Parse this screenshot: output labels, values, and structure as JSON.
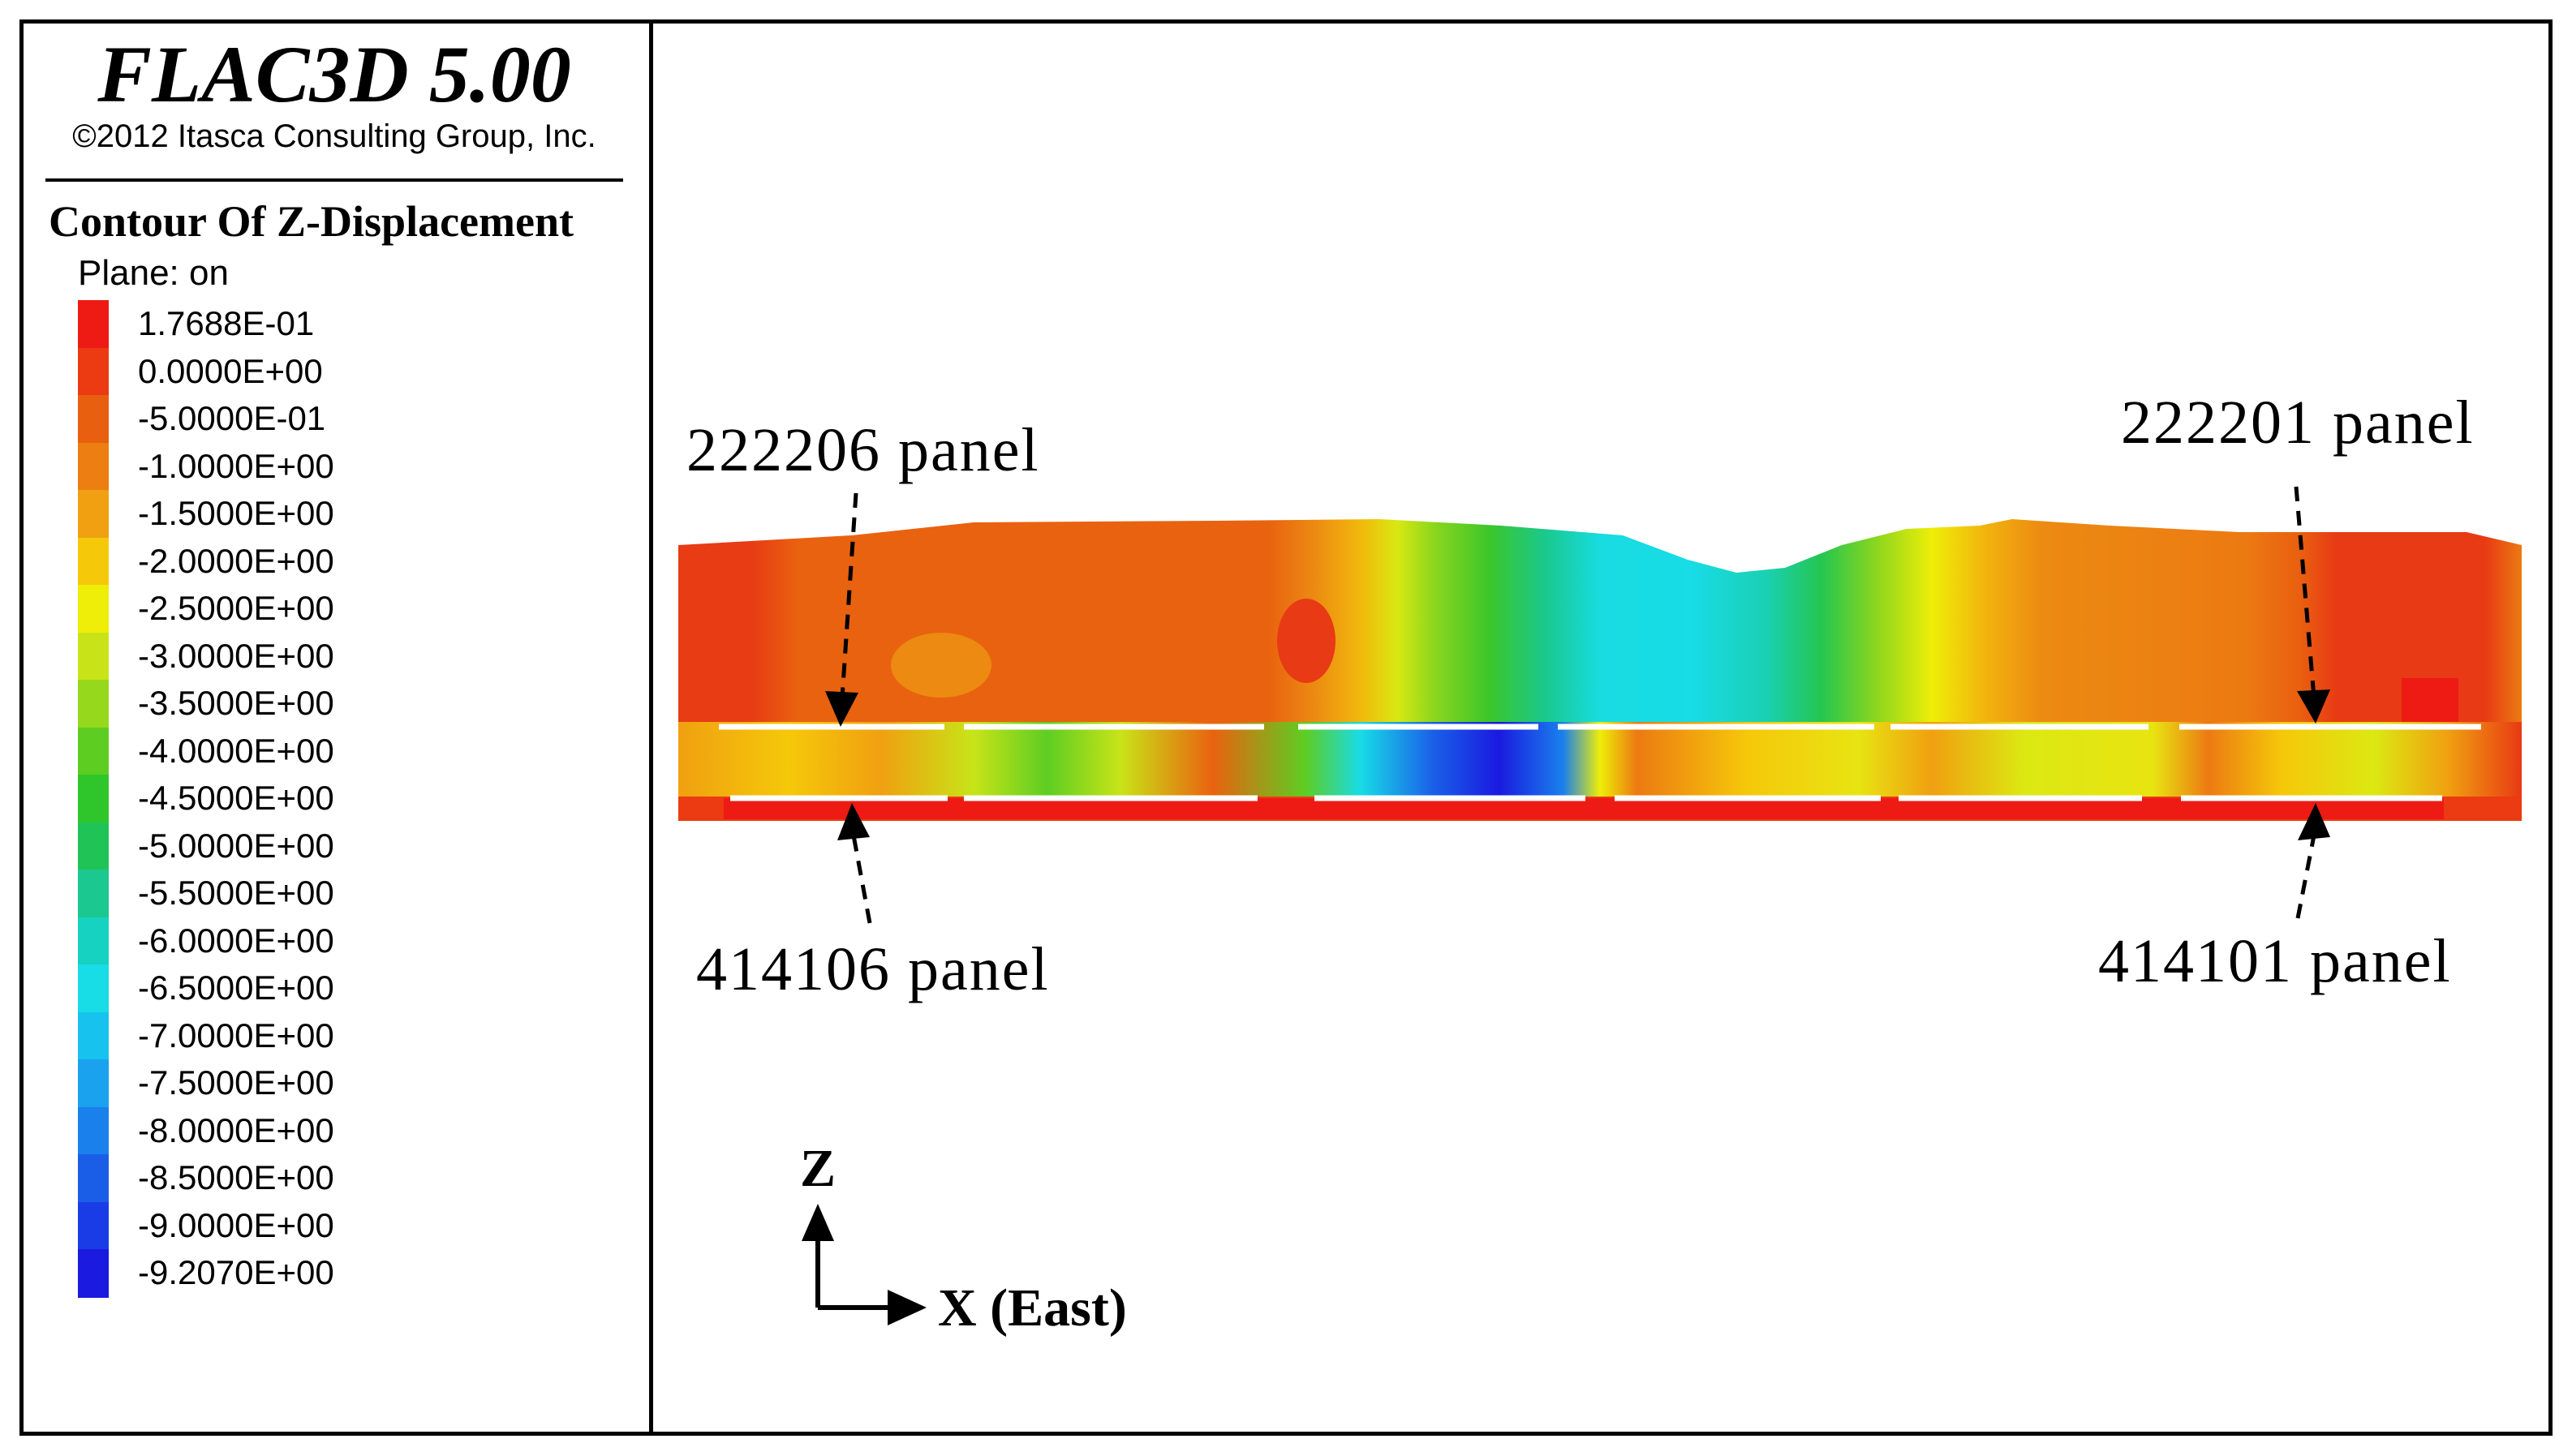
{
  "app_title": "FLAC3D 5.00",
  "copyright": "©2012 Itasca Consulting Group, Inc.",
  "contour_title": "Contour Of Z-Displacement",
  "plane_label": "Plane: on",
  "legend_levels": [
    {
      "label": "1.7688E-01",
      "color": "#ee1a14"
    },
    {
      "label": "0.0000E+00",
      "color": "#ec3a12"
    },
    {
      "label": "-5.0000E-01",
      "color": "#e95f10"
    },
    {
      "label": "-1.0000E+00",
      "color": "#ec7e12"
    },
    {
      "label": "-1.5000E+00",
      "color": "#f0a010"
    },
    {
      "label": "-2.0000E+00",
      "color": "#f5c80a"
    },
    {
      "label": "-2.5000E+00",
      "color": "#eeee08"
    },
    {
      "label": "-3.0000E+00",
      "color": "#c8e418"
    },
    {
      "label": "-3.5000E+00",
      "color": "#96d81c"
    },
    {
      "label": "-4.0000E+00",
      "color": "#5ecd22"
    },
    {
      "label": "-4.5000E+00",
      "color": "#2ec62a"
    },
    {
      "label": "-5.0000E+00",
      "color": "#20c456"
    },
    {
      "label": "-5.5000E+00",
      "color": "#1ac890"
    },
    {
      "label": "-6.0000E+00",
      "color": "#16d2c0"
    },
    {
      "label": "-6.5000E+00",
      "color": "#18dce6"
    },
    {
      "label": "-7.0000E+00",
      "color": "#18c2ee"
    },
    {
      "label": "-7.5000E+00",
      "color": "#1aa2ee"
    },
    {
      "label": "-8.0000E+00",
      "color": "#1a80ec"
    },
    {
      "label": "-8.5000E+00",
      "color": "#1a5ee8"
    },
    {
      "label": "-9.0000E+00",
      "color": "#1a3ce6"
    },
    {
      "label": "-9.2070E+00",
      "color": "#1a1ae0"
    }
  ],
  "annotations": {
    "panel_222206": "222206 panel",
    "panel_222201": "222201 panel",
    "panel_414106": "414106 panel",
    "panel_414101": "414101 panel"
  },
  "axes": {
    "z_label": "Z",
    "x_label": "X (East)"
  }
}
